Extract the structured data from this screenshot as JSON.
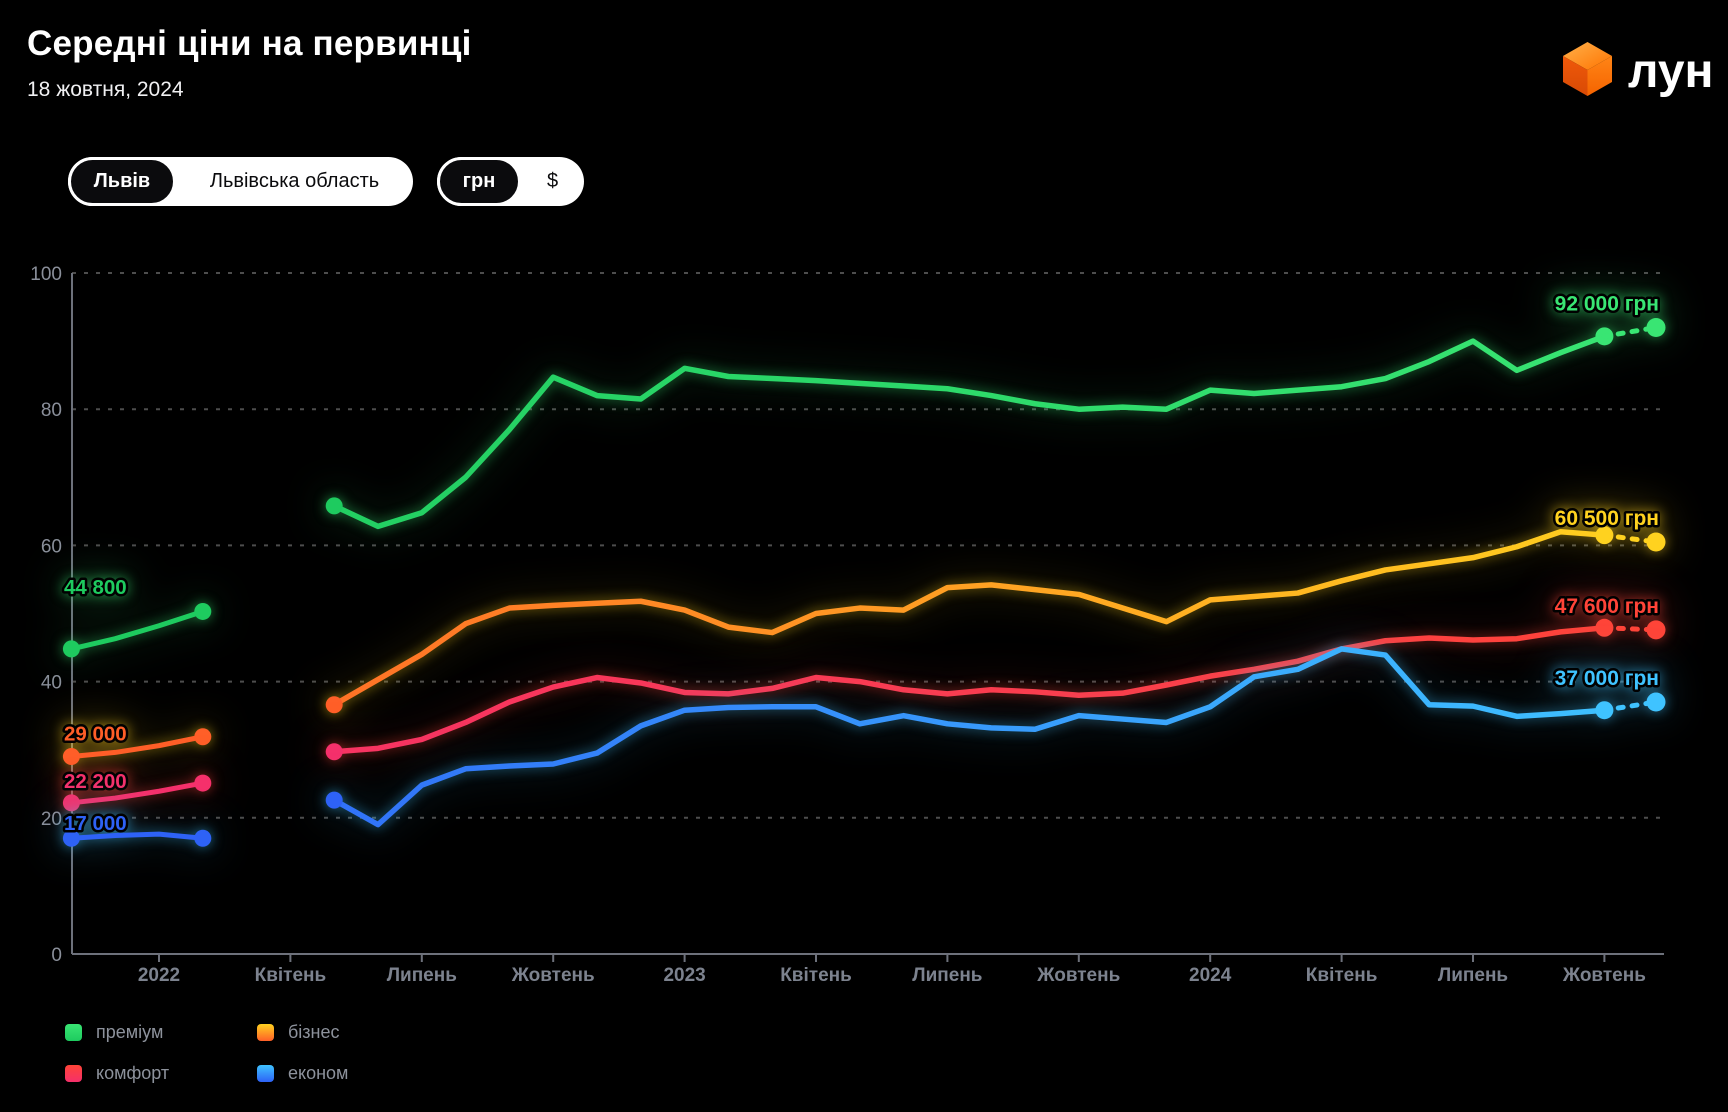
{
  "header": {
    "title": "Середні ціни на первинці",
    "date": "18 жовтня, 2024",
    "logo_text": "лун"
  },
  "toggles": {
    "city": {
      "options": [
        "Львів",
        "Львівська область"
      ],
      "selected": "Львів"
    },
    "currency": {
      "options": [
        "грн",
        "$"
      ],
      "selected": "грн"
    }
  },
  "chart_data": {
    "type": "line",
    "title": "Середні ціни на первинці",
    "currency": "грн",
    "unit": "thousand грн",
    "ylim": [
      0,
      100
    ],
    "yticks": [
      "0",
      "20",
      "40",
      "60",
      "80",
      "100"
    ],
    "x_tick_labels": [
      "2022",
      "Квітень",
      "Липень",
      "Жовтень",
      "2023",
      "Квітень",
      "Липень",
      "Жовтень",
      "2024",
      "Квітень",
      "Липень",
      "Жовтень"
    ],
    "grid": "horizontal-dashed",
    "legend_position": "bottom-left",
    "series": [
      {
        "name": "преміум",
        "color_start": "#1ecb5f",
        "color_end": "#39e573",
        "label_start": "44 800",
        "label_end": "92 000 грн",
        "pre_war_values": [
          44.8,
          46.3,
          48.2,
          50.3
        ],
        "values": [
          65.8,
          62.8,
          64.8,
          70.0,
          77.0,
          84.7,
          82.0,
          81.5,
          86.0,
          84.8,
          84.5,
          84.2,
          83.8,
          83.4,
          83.0,
          82.0,
          80.8,
          80.0,
          80.3,
          80.0,
          82.8,
          82.3,
          82.8,
          83.3,
          84.5,
          87.0,
          90.0,
          85.7,
          88.3,
          90.7
        ],
        "current_value": 92.0
      },
      {
        "name": "бізнес",
        "color_start": "#ff5f28",
        "color_end": "#ffd21f",
        "label_start": "29 000",
        "label_end": "60 500 грн",
        "pre_war_values": [
          29.0,
          29.6,
          30.6,
          31.9
        ],
        "values": [
          36.6,
          40.3,
          44.0,
          48.5,
          50.8,
          51.2,
          51.5,
          51.8,
          50.5,
          48.0,
          47.2,
          50.0,
          50.8,
          50.5,
          53.8,
          54.2,
          53.5,
          52.8,
          50.8,
          48.8,
          52.0,
          52.5,
          53.0,
          54.8,
          56.4,
          57.3,
          58.2,
          59.8,
          62.0,
          61.5
        ],
        "current_value": 60.5
      },
      {
        "name": "комфорт",
        "color_start": "#f5306b",
        "color_end": "#ff4438",
        "label_start": "22 200",
        "label_end": "47 600 грн",
        "pre_war_values": [
          22.2,
          22.9,
          23.9,
          25.1
        ],
        "values": [
          29.7,
          30.2,
          31.5,
          34.0,
          37.0,
          39.2,
          40.6,
          39.8,
          38.4,
          38.2,
          39.0,
          40.6,
          40.0,
          38.8,
          38.2,
          38.8,
          38.5,
          38.0,
          38.3,
          39.5,
          40.8,
          41.8,
          43.0,
          44.8,
          46.0,
          46.4,
          46.1,
          46.3,
          47.3,
          47.9
        ],
        "current_value": 47.6
      },
      {
        "name": "економ",
        "color_start": "#2e62f6",
        "color_end": "#3fc3ff",
        "label_start": "17 000",
        "label_end": "37 000 грн",
        "pre_war_values": [
          17.0,
          17.4,
          17.6,
          17.0
        ],
        "values": [
          22.6,
          19.0,
          24.8,
          27.2,
          27.6,
          27.9,
          29.5,
          33.5,
          35.8,
          36.2,
          36.3,
          36.3,
          33.8,
          35.0,
          33.8,
          33.2,
          33.0,
          35.0,
          34.5,
          34.0,
          36.3,
          40.7,
          41.8,
          44.8,
          43.9,
          36.6,
          36.4,
          34.9,
          35.3,
          35.8
        ],
        "current_value": 37.0
      }
    ]
  },
  "legend": {
    "items": [
      {
        "label": "преміум"
      },
      {
        "label": "бізнес"
      },
      {
        "label": "комфорт"
      },
      {
        "label": "економ"
      }
    ]
  }
}
